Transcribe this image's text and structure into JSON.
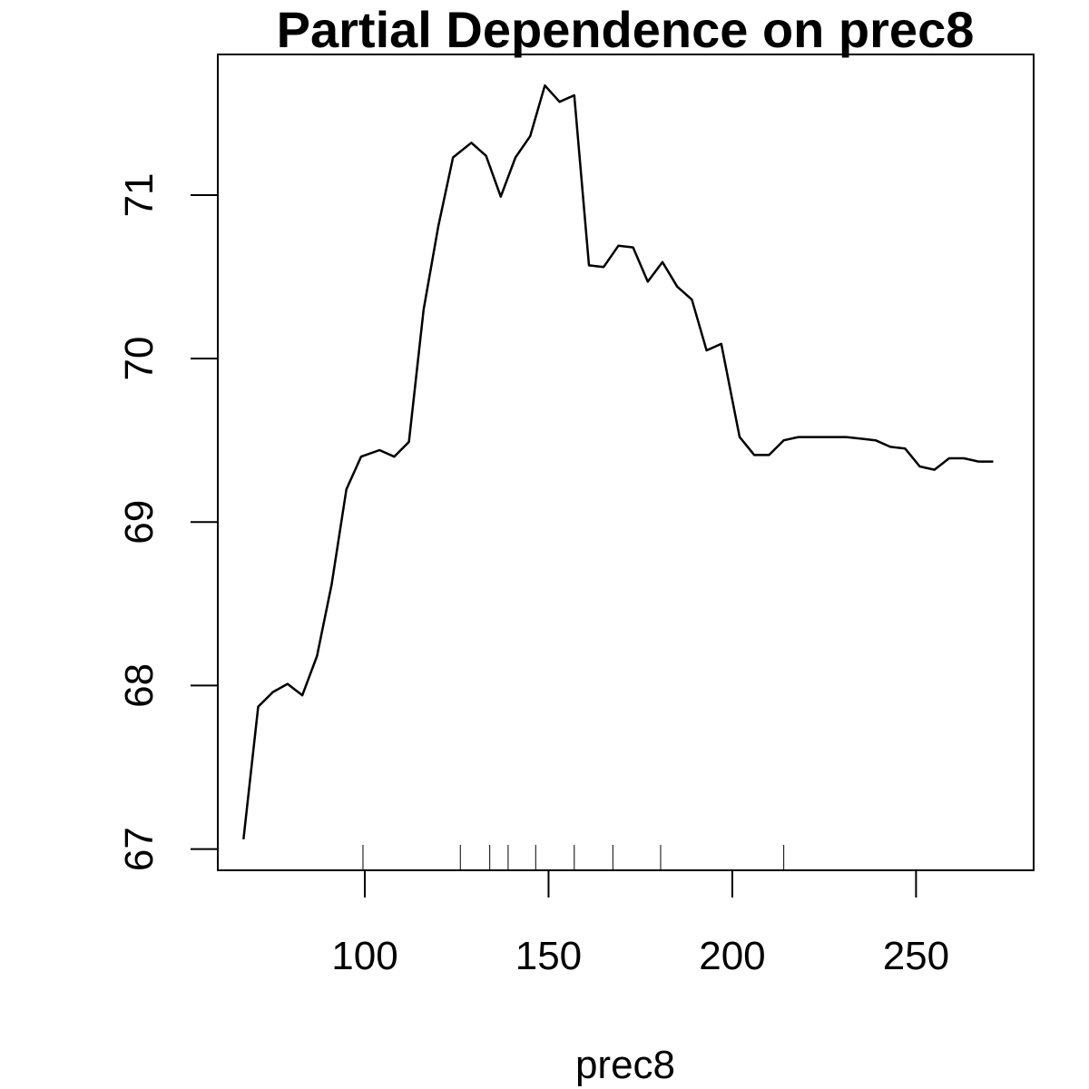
{
  "chart_data": {
    "type": "line",
    "title": "Partial Dependence on prec8",
    "xlabel": "prec8",
    "ylabel": "",
    "xlim": [
      60,
      282
    ],
    "ylim": [
      66.87,
      71.86
    ],
    "x_ticks": [
      100,
      150,
      200,
      250
    ],
    "y_ticks": [
      67,
      68,
      69,
      70,
      71
    ],
    "grid": false,
    "series": [
      {
        "x": [
          67,
          71,
          75,
          79,
          83,
          87,
          91,
          95,
          99,
          104,
          108,
          112,
          116,
          120,
          124,
          129,
          133,
          137,
          141,
          145,
          149,
          153,
          157,
          161,
          165,
          169,
          173,
          177,
          181,
          185,
          189,
          193,
          197,
          202,
          206,
          210,
          214,
          218,
          222,
          226,
          231,
          235,
          239,
          243,
          247,
          251,
          255,
          259,
          263,
          267,
          271
        ],
        "y": [
          67.06,
          67.87,
          67.96,
          68.01,
          67.94,
          68.18,
          68.62,
          69.2,
          69.4,
          69.44,
          69.4,
          69.49,
          70.3,
          70.81,
          71.23,
          71.32,
          71.24,
          70.99,
          71.23,
          71.36,
          71.67,
          71.57,
          71.61,
          70.57,
          70.56,
          70.69,
          70.68,
          70.47,
          70.59,
          70.44,
          70.36,
          70.05,
          70.09,
          69.52,
          69.41,
          69.41,
          69.5,
          69.52,
          69.52,
          69.52,
          69.52,
          69.51,
          69.5,
          69.46,
          69.45,
          69.34,
          69.32,
          69.39,
          69.39,
          69.37,
          69.37
        ]
      }
    ],
    "rug": [
      99.5,
      126,
      134,
      139,
      146.5,
      157,
      167.5,
      180.5,
      214
    ]
  }
}
